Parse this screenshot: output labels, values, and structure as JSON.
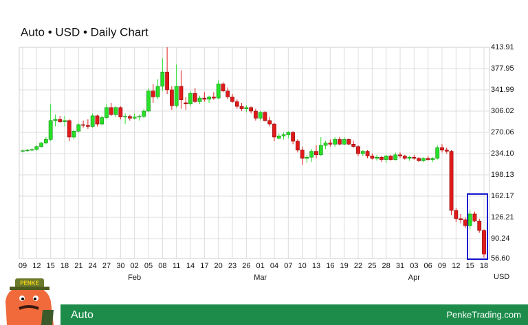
{
  "chart_data": {
    "type": "candlestick",
    "title": "Auto • USD • Daily Chart",
    "y_unit": "USD",
    "categories": [
      "09",
      null,
      null,
      "12",
      null,
      null,
      "15",
      null,
      null,
      "18",
      null,
      null,
      "21",
      null,
      null,
      "24",
      null,
      null,
      "27",
      null,
      null,
      "30",
      null,
      null,
      "02",
      null,
      null,
      "05",
      null,
      null,
      "08",
      null,
      null,
      "11",
      null,
      null,
      "14",
      null,
      null,
      "17",
      null,
      null,
      "20",
      null,
      null,
      "23",
      null,
      null,
      "26",
      null,
      null,
      "01",
      null,
      null,
      "04",
      null,
      null,
      "07",
      null,
      null,
      "10",
      null,
      null,
      "13",
      null,
      null,
      "16",
      null,
      null,
      "19",
      null,
      null,
      "22",
      null,
      null,
      "25",
      null,
      null,
      "28",
      null,
      null,
      "31",
      null,
      null,
      "03",
      null,
      null,
      "06",
      null,
      null,
      "09",
      null,
      null,
      "12",
      null,
      null,
      "15",
      null,
      null,
      "18"
    ],
    "x_groups": [
      {
        "value": 24,
        "label": "Feb"
      },
      {
        "value": 51,
        "label": "Mar"
      },
      {
        "value": 84,
        "label": "Apr"
      }
    ],
    "open": [
      238,
      239,
      240,
      241,
      246,
      252,
      258,
      290,
      292,
      288,
      290,
      262,
      272,
      283,
      282,
      280,
      298,
      284,
      295,
      312,
      300,
      312,
      296,
      297,
      294,
      296,
      297,
      306,
      340,
      330,
      348,
      372,
      342,
      315,
      348,
      320,
      318,
      336,
      322,
      328,
      326,
      330,
      328,
      352,
      340,
      330,
      322,
      314,
      310,
      312,
      306,
      294,
      304,
      290,
      284,
      260,
      264,
      266,
      270,
      255,
      240,
      226,
      228,
      238,
      232,
      248,
      252,
      250,
      258,
      250,
      258,
      250,
      246,
      234,
      238,
      230,
      226,
      228,
      224,
      230,
      224,
      232,
      230,
      226,
      228,
      226,
      222,
      226,
      224,
      226,
      244,
      240,
      238,
      138,
      124,
      122,
      112,
      132,
      120,
      104
    ],
    "high": [
      241,
      242,
      243,
      248,
      254,
      262,
      318,
      300,
      298,
      298,
      292,
      275,
      285,
      290,
      292,
      302,
      300,
      298,
      318,
      320,
      314,
      314,
      302,
      300,
      302,
      300,
      310,
      345,
      352,
      360,
      395,
      414,
      348,
      385,
      375,
      330,
      340,
      345,
      332,
      338,
      332,
      338,
      358,
      355,
      346,
      335,
      326,
      320,
      316,
      314,
      310,
      306,
      306,
      296,
      286,
      268,
      270,
      272,
      272,
      258,
      246,
      232,
      242,
      248,
      262,
      256,
      258,
      262,
      262,
      262,
      260,
      256,
      248,
      240,
      240,
      234,
      232,
      230,
      232,
      232,
      236,
      236,
      232,
      230,
      232,
      228,
      228,
      230,
      228,
      248,
      250,
      244,
      240,
      142,
      132,
      126,
      138,
      136,
      124,
      106
    ],
    "low": [
      236,
      237,
      238,
      239,
      244,
      250,
      255,
      280,
      286,
      280,
      255,
      258,
      270,
      278,
      276,
      278,
      280,
      282,
      292,
      298,
      296,
      292,
      284,
      290,
      292,
      290,
      294,
      304,
      320,
      326,
      340,
      335,
      308,
      312,
      310,
      308,
      314,
      320,
      318,
      322,
      320,
      325,
      326,
      338,
      326,
      320,
      310,
      306,
      304,
      302,
      290,
      290,
      288,
      280,
      255,
      258,
      258,
      260,
      250,
      236,
      215,
      218,
      220,
      226,
      230,
      242,
      246,
      246,
      248,
      248,
      248,
      244,
      230,
      230,
      226,
      224,
      222,
      220,
      218,
      222,
      222,
      226,
      224,
      222,
      224,
      220,
      220,
      222,
      220,
      224,
      236,
      234,
      130,
      118,
      116,
      108,
      106,
      118,
      100,
      58
    ],
    "close": [
      239,
      240,
      241,
      246,
      252,
      258,
      290,
      292,
      288,
      290,
      262,
      272,
      283,
      282,
      280,
      298,
      284,
      295,
      312,
      300,
      312,
      296,
      297,
      294,
      296,
      297,
      306,
      340,
      330,
      348,
      372,
      342,
      315,
      348,
      325,
      318,
      336,
      322,
      328,
      326,
      330,
      328,
      352,
      340,
      330,
      322,
      314,
      310,
      312,
      306,
      294,
      304,
      290,
      284,
      262,
      264,
      266,
      270,
      255,
      240,
      226,
      228,
      238,
      232,
      248,
      252,
      250,
      258,
      250,
      258,
      250,
      246,
      234,
      238,
      230,
      226,
      228,
      224,
      230,
      224,
      232,
      230,
      226,
      228,
      226,
      222,
      226,
      224,
      226,
      244,
      240,
      238,
      138,
      124,
      122,
      112,
      132,
      120,
      104,
      64
    ],
    "up_color": "#27e027",
    "down_color": "#e01a1a",
    "ylim": [
      56.6,
      413.91
    ],
    "yticks": [
      {
        "value": 56.6,
        "label": "56.60"
      },
      {
        "value": 90.24,
        "label": "90.24"
      },
      {
        "value": 126.21,
        "label": "126.21"
      },
      162.17,
      198.13,
      {
        "value": 234.1,
        "label": "234.10"
      },
      270.06,
      306.02,
      341.99,
      377.95,
      413.91
    ],
    "grid": true,
    "footer_name": "Auto",
    "footer_site": "PenkeTrading.com",
    "logo_text": "PENKE"
  }
}
